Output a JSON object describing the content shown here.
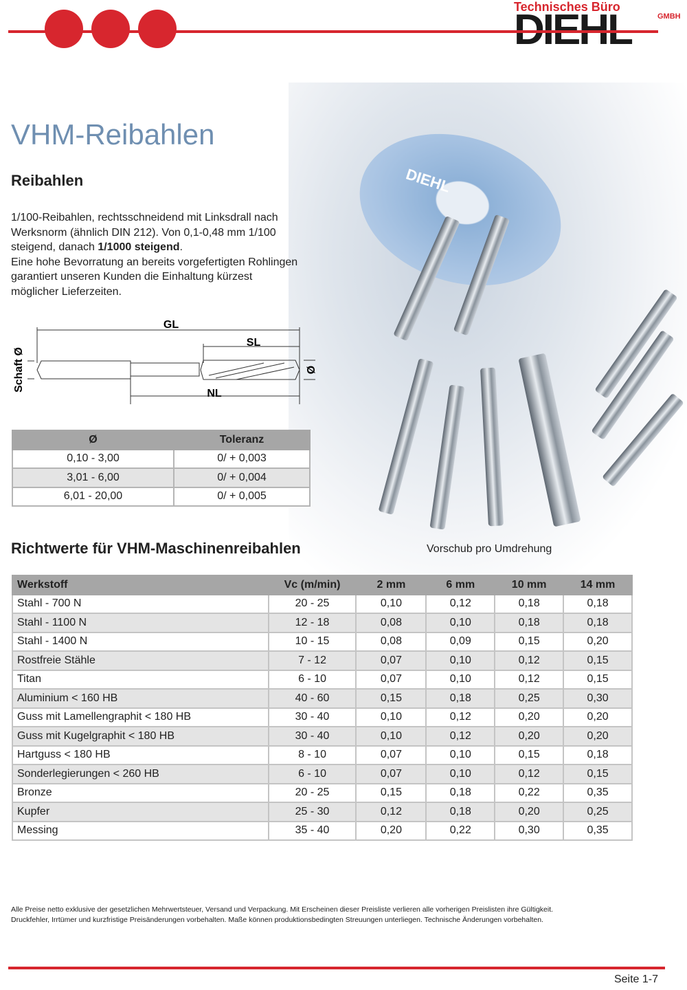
{
  "brand": {
    "subtitle": "Technisches Büro",
    "name": "DIEHL",
    "legal": "GMBH",
    "accent": "#d7262e"
  },
  "header_icons": [
    "grinding-wheel-icon",
    "diamond-icon",
    "machine-tool-icon"
  ],
  "title": "VHM-Reibahlen",
  "section": "Reibahlen",
  "intro": {
    "line1": "1/100-Reibahlen, rechtsschneidend mit Linksdrall nach Werksnorm (ähnlich DIN 212). Von 0,1-0,48 mm 1/100 steigend, danach ",
    "bold": "1/1000 steigend",
    "line1_end": ".",
    "line2": "Eine hohe Bevorratung an bereits vorgefertigten Rohlingen garantiert unseren Kunden die Einhaltung kürzest möglicher Lieferzeiten."
  },
  "diagram": {
    "gl": "GL",
    "sl": "SL",
    "nl": "NL",
    "shank": "Schaft Ø",
    "dia": "Ø"
  },
  "tolerance": {
    "headers": [
      "Ø",
      "Toleranz"
    ],
    "rows": [
      [
        "0,10 -   3,00",
        "0/ + 0,003"
      ],
      [
        "3,01 -   6,00",
        "0/ + 0,004"
      ],
      [
        "6,01 - 20,00",
        "0/ + 0,005"
      ]
    ]
  },
  "richtwerte": {
    "title": "Richtwerte für VHM-Maschinenreibahlen",
    "note": "Vorschub pro Umdrehung",
    "headers": [
      "Werkstoff",
      "Vc (m/min)",
      "2 mm",
      "6 mm",
      "10 mm",
      "14 mm"
    ],
    "rows": [
      [
        "Stahl - 700 N",
        "20 - 25",
        "0,10",
        "0,12",
        "0,18",
        "0,18"
      ],
      [
        "Stahl - 1100 N",
        "12 - 18",
        "0,08",
        "0,10",
        "0,18",
        "0,18"
      ],
      [
        "Stahl - 1400 N",
        "10 - 15",
        "0,08",
        "0,09",
        "0,15",
        "0,20"
      ],
      [
        "Rostfreie Stähle",
        "7 - 12",
        "0,07",
        "0,10",
        "0,12",
        "0,15"
      ],
      [
        "Titan",
        "6 - 10",
        "0,07",
        "0,10",
        "0,12",
        "0,15"
      ],
      [
        "Aluminium < 160 HB",
        "40 - 60",
        "0,15",
        "0,18",
        "0,25",
        "0,30"
      ],
      [
        "Guss mit Lamellengraphit < 180 HB",
        "30 - 40",
        "0,10",
        "0,12",
        "0,20",
        "0,20"
      ],
      [
        "Guss mit Kugelgraphit < 180 HB",
        "30 - 40",
        "0,10",
        "0,12",
        "0,20",
        "0,20"
      ],
      [
        "Hartguss < 180 HB",
        "8 - 10",
        "0,07",
        "0,10",
        "0,15",
        "0,18"
      ],
      [
        "Sonderlegierungen < 260 HB",
        "6 - 10",
        "0,07",
        "0,10",
        "0,12",
        "0,15"
      ],
      [
        "Bronze",
        "20 - 25",
        "0,15",
        "0,18",
        "0,22",
        "0,35"
      ],
      [
        "Kupfer",
        "25 - 30",
        "0,12",
        "0,18",
        "0,20",
        "0,25"
      ],
      [
        "Messing",
        "35 - 40",
        "0,20",
        "0,22",
        "0,30",
        "0,35"
      ]
    ]
  },
  "footer": {
    "line1": "Alle Preise netto exklusive der gesetzlichen Mehrwertsteuer, Versand und Verpackung. Mit Erscheinen dieser Preisliste verlieren alle vorherigen Preislisten ihre Gültigkeit.",
    "line2": "Druckfehler, Irrtümer und kurzfristige Preisänderungen vorbehalten. Maße können produktionsbedingten Streuungen unterliegen. Technische Änderungen vorbehalten."
  },
  "page": "Seite 1-7"
}
